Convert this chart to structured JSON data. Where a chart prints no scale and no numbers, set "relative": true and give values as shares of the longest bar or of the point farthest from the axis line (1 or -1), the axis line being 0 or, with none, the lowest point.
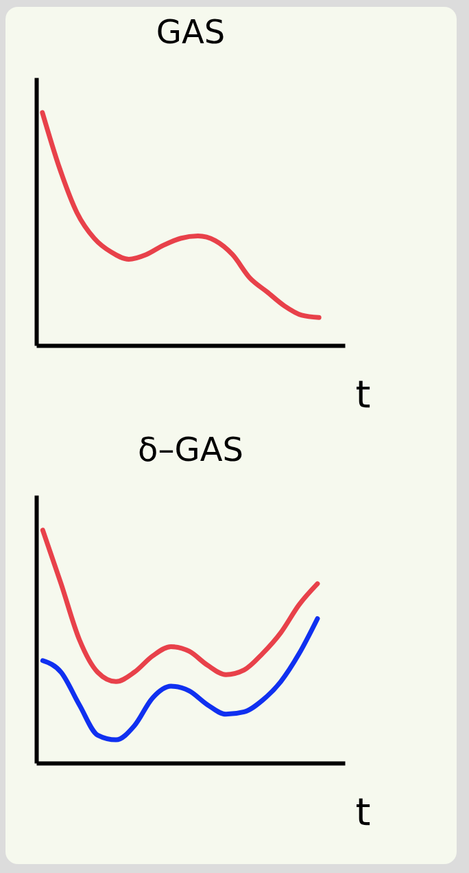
{
  "chart_data": [
    {
      "type": "line",
      "title": "GAS",
      "xlabel": "t",
      "relative": true,
      "categories": [
        null,
        null,
        null,
        null,
        null,
        null,
        null,
        null,
        null,
        null,
        null,
        null,
        null,
        null,
        null,
        null,
        null
      ],
      "series": [
        {
          "color": "#e8414a",
          "values": [
            1.0,
            0.76,
            0.57,
            0.46,
            0.4,
            0.37,
            0.39,
            0.43,
            0.46,
            0.47,
            0.45,
            0.39,
            0.29,
            0.23,
            0.17,
            0.13,
            0.12
          ]
        }
      ]
    },
    {
      "type": "line",
      "title": "δ–GAS",
      "xlabel": "t",
      "relative": true,
      "categories": [
        null,
        null,
        null,
        null,
        null,
        null,
        null,
        null,
        null,
        null,
        null,
        null,
        null,
        null,
        null,
        null
      ],
      "series": [
        {
          "color": "#e8414a",
          "values": [
            1.0,
            0.77,
            0.53,
            0.39,
            0.35,
            0.39,
            0.46,
            0.5,
            0.48,
            0.42,
            0.38,
            0.4,
            0.47,
            0.56,
            0.68,
            0.77
          ]
        },
        {
          "color": "#1030f0",
          "values": [
            0.44,
            0.39,
            0.25,
            0.12,
            0.1,
            0.16,
            0.28,
            0.33,
            0.31,
            0.25,
            0.21,
            0.22,
            0.27,
            0.35,
            0.47,
            0.62
          ]
        }
      ]
    }
  ]
}
